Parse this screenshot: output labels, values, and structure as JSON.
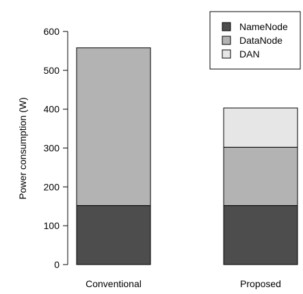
{
  "chart_data": {
    "type": "bar",
    "stacked": true,
    "categories": [
      "Conventional",
      "Proposed"
    ],
    "series": [
      {
        "name": "NameNode",
        "values": [
          152,
          152
        ],
        "color": "#4d4d4d"
      },
      {
        "name": "DataNode",
        "values": [
          406,
          150
        ],
        "color": "#b3b3b3"
      },
      {
        "name": "DAN",
        "values": [
          0,
          101
        ],
        "color": "#e6e6e6"
      }
    ],
    "ylabel": "Power consumption (W)",
    "ylim": [
      0,
      600
    ],
    "yticks": [
      0,
      100,
      200,
      300,
      400,
      500,
      600
    ],
    "grid": false,
    "legend": "top-right"
  }
}
